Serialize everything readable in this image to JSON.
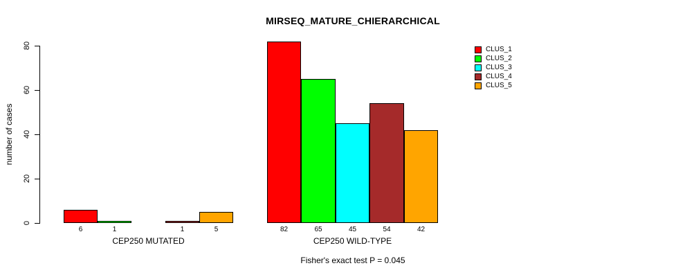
{
  "chart_data": {
    "type": "bar",
    "title": "MIRSEQ_MATURE_CHIERARCHICAL",
    "ylabel": "number of cases",
    "xlabel": "",
    "ylim": [
      0,
      80
    ],
    "yticks": [
      0,
      20,
      40,
      60,
      80
    ],
    "grid": false,
    "legend_position": "top-right",
    "series": [
      "CLUS_1",
      "CLUS_2",
      "CLUS_3",
      "CLUS_4",
      "CLUS_5"
    ],
    "colors": [
      "#FF0000",
      "#00FF00",
      "#00FFFF",
      "#A52A2A",
      "#FFA500"
    ],
    "bar_border_color": "#000000",
    "groups": [
      {
        "label": "CEP250 MUTATED",
        "values": [
          6,
          1,
          0,
          1,
          5
        ],
        "bar_labels": [
          "6",
          "1",
          "",
          "1",
          "5"
        ]
      },
      {
        "label": "CEP250 WILD-TYPE",
        "values": [
          82,
          65,
          45,
          54,
          42
        ],
        "bar_labels": [
          "82",
          "65",
          "45",
          "54",
          "42"
        ]
      }
    ],
    "annotation": "Fisher's exact test P = 0.045"
  }
}
